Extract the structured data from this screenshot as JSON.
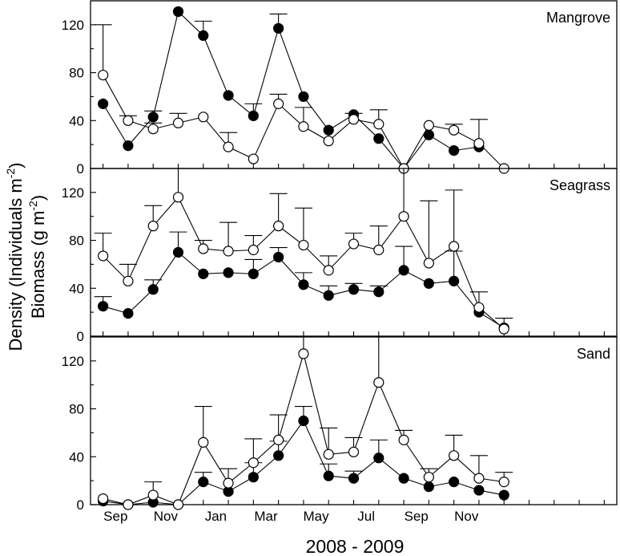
{
  "chart_data": {
    "type": "line",
    "xlabel": "2008 - 2009",
    "ylabel_line1": "Density (Individuals m",
    "ylabel_line1_sup": "-2",
    "ylabel_line1_end": ")",
    "ylabel_line2": "Biomass (g m",
    "ylabel_line2_sup": "-2",
    "ylabel_line2_end": ")",
    "x_index": [
      0,
      1,
      2,
      3,
      4,
      5,
      6,
      7,
      8,
      9,
      10,
      11,
      12,
      13,
      14,
      15,
      16,
      17,
      18,
      19,
      20
    ],
    "x_tick_labels": [
      {
        "label": "Sep",
        "x": 0.5
      },
      {
        "label": "Nov",
        "x": 2.5
      },
      {
        "label": "Jan",
        "x": 4.5
      },
      {
        "label": "Mar",
        "x": 6.5
      },
      {
        "label": "May",
        "x": 8.5
      },
      {
        "label": "Jul",
        "x": 10.5
      },
      {
        "label": "Sep",
        "x": 12.5
      },
      {
        "label": "Nov",
        "x": 14.5
      }
    ],
    "xlim": [
      -0.5,
      20.5
    ],
    "ylim": [
      0,
      140
    ],
    "y_ticks": [
      0,
      40,
      80,
      120
    ],
    "panels": [
      {
        "title": "Mangrove",
        "series": [
          {
            "marker": "filled",
            "values": [
              54,
              19,
              43,
              131,
              111,
              61,
              44,
              117,
              60,
              32,
              45,
              25,
              0,
              28,
              15,
              18,
              null
            ],
            "err": [
              0,
              0,
              5,
              0,
              12,
              0,
              10,
              12,
              0,
              0,
              0,
              0,
              0,
              0,
              0,
              0,
              null
            ]
          },
          {
            "marker": "open",
            "values": [
              78,
              40,
              33,
              38,
              43,
              18,
              8,
              54,
              35,
              23,
              41,
              37,
              0,
              36,
              32,
              21,
              0
            ],
            "err": [
              42,
              4,
              5,
              8,
              0,
              12,
              0,
              8,
              16,
              0,
              5,
              12,
              0,
              0,
              5,
              20,
              0
            ]
          }
        ]
      },
      {
        "title": "Seagrass",
        "series": [
          {
            "marker": "filled",
            "values": [
              25,
              19,
              39,
              70,
              52,
              53,
              52,
              66,
              43,
              34,
              39,
              37,
              55,
              44,
              46,
              20,
              7
            ],
            "err": [
              8,
              0,
              8,
              17,
              0,
              0,
              12,
              8,
              10,
              8,
              5,
              5,
              20,
              0,
              25,
              0,
              0
            ]
          },
          {
            "marker": "open",
            "values": [
              67,
              46,
              92,
              116,
              73,
              71,
              72,
              92,
              76,
              55,
              77,
              72,
              100,
              61,
              75,
              24,
              6
            ],
            "err": [
              19,
              14,
              17,
              25,
              7,
              24,
              12,
              27,
              31,
              12,
              9,
              20,
              40,
              52,
              47,
              13,
              9
            ]
          }
        ]
      },
      {
        "title": "Sand",
        "series": [
          {
            "marker": "filled",
            "values": [
              3,
              0,
              2,
              0,
              19,
              11,
              23,
              41,
              70,
              24,
              22,
              39,
              22,
              15,
              19,
              12,
              8
            ],
            "err": [
              0,
              0,
              0,
              0,
              8,
              0,
              12,
              12,
              12,
              10,
              6,
              15,
              0,
              0,
              0,
              0,
              0
            ]
          },
          {
            "marker": "open",
            "values": [
              5,
              0,
              8,
              0,
              52,
              18,
              35,
              54,
              126,
              42,
              44,
              102,
              54,
              23,
              41,
              22,
              19
            ],
            "err": [
              0,
              0,
              11,
              0,
              30,
              12,
              20,
              21,
              18,
              22,
              12,
              46,
              8,
              7,
              17,
              19,
              8
            ]
          }
        ]
      }
    ]
  }
}
